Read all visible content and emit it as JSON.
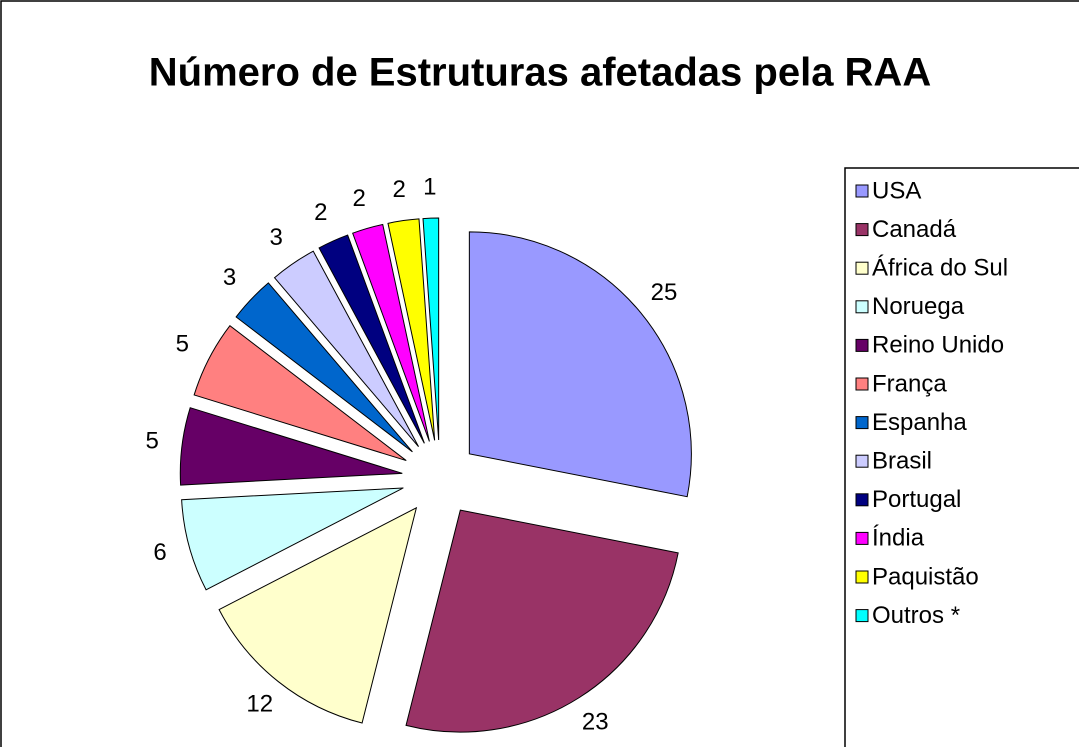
{
  "chart_data": {
    "type": "pie",
    "title": "Número de Estruturas afetadas pela RAA",
    "categories": [
      "USA",
      "Canadá",
      "África do Sul",
      "Noruega",
      "Reino Unido",
      "França",
      "Espanha",
      "Brasil",
      "Portugal",
      "Índia",
      "Paquistão",
      "Outros *"
    ],
    "values": [
      25,
      23,
      12,
      6,
      5,
      5,
      3,
      3,
      2,
      2,
      2,
      1
    ],
    "colors": [
      "#9999ff",
      "#993366",
      "#ffffcc",
      "#ccffff",
      "#660066",
      "#ff8080",
      "#0066cc",
      "#ccccff",
      "#000080",
      "#ff00ff",
      "#ffff00",
      "#00ffff"
    ],
    "legend": "right"
  }
}
